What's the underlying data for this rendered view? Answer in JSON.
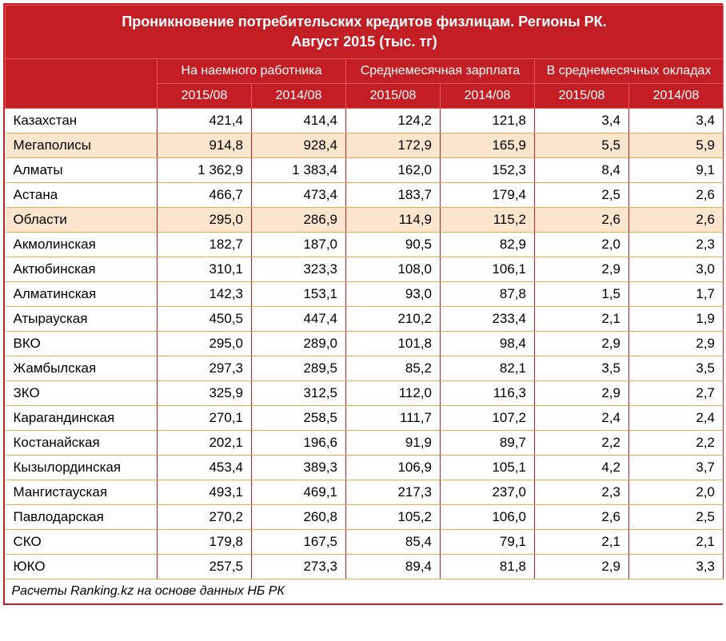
{
  "title_line1": "Проникновение потребительских кредитов физлицам. Регионы РК.",
  "title_line2": "Август 2015 (тыс. тг)",
  "group_headers": [
    "На наемного работника",
    "Среднемесячная зарплата",
    "В среднемесячных окладах"
  ],
  "year_headers": [
    "2015/08",
    "2014/08",
    "2015/08",
    "2014/08",
    "2015/08",
    "2014/08"
  ],
  "rows": [
    {
      "name": "Казахстан",
      "vals": [
        "421,4",
        "414,4",
        "124,2",
        "121,8",
        "3,4",
        "3,4"
      ],
      "highlight": false
    },
    {
      "name": "Мегаполисы",
      "vals": [
        "914,8",
        "928,4",
        "172,9",
        "165,9",
        "5,5",
        "5,9"
      ],
      "highlight": true
    },
    {
      "name": "Алматы",
      "vals": [
        "1 362,9",
        "1 383,4",
        "162,0",
        "152,3",
        "8,4",
        "9,1"
      ],
      "highlight": false
    },
    {
      "name": "Астана",
      "vals": [
        "466,7",
        "473,4",
        "183,7",
        "179,4",
        "2,5",
        "2,6"
      ],
      "highlight": false
    },
    {
      "name": "Области",
      "vals": [
        "295,0",
        "286,9",
        "114,9",
        "115,2",
        "2,6",
        "2,6"
      ],
      "highlight": true
    },
    {
      "name": "Акмолинская",
      "vals": [
        "182,7",
        "187,0",
        "90,5",
        "82,9",
        "2,0",
        "2,3"
      ],
      "highlight": false
    },
    {
      "name": "Актюбинская",
      "vals": [
        "310,1",
        "323,3",
        "108,0",
        "106,1",
        "2,9",
        "3,0"
      ],
      "highlight": false
    },
    {
      "name": "Алматинская",
      "vals": [
        "142,3",
        "153,1",
        "93,0",
        "87,8",
        "1,5",
        "1,7"
      ],
      "highlight": false
    },
    {
      "name": "Атырауская",
      "vals": [
        "450,5",
        "447,4",
        "210,2",
        "233,4",
        "2,1",
        "1,9"
      ],
      "highlight": false
    },
    {
      "name": "ВКО",
      "vals": [
        "295,0",
        "289,0",
        "101,8",
        "98,4",
        "2,9",
        "2,9"
      ],
      "highlight": false
    },
    {
      "name": "Жамбылская",
      "vals": [
        "297,3",
        "289,5",
        "85,2",
        "82,1",
        "3,5",
        "3,5"
      ],
      "highlight": false
    },
    {
      "name": "ЗКО",
      "vals": [
        "325,9",
        "312,5",
        "112,0",
        "116,3",
        "2,9",
        "2,7"
      ],
      "highlight": false
    },
    {
      "name": "Карагандинская",
      "vals": [
        "270,1",
        "258,5",
        "111,7",
        "107,2",
        "2,4",
        "2,4"
      ],
      "highlight": false
    },
    {
      "name": "Костанайская",
      "vals": [
        "202,1",
        "196,6",
        "91,9",
        "89,7",
        "2,2",
        "2,2"
      ],
      "highlight": false
    },
    {
      "name": "Кызылординская",
      "vals": [
        "453,4",
        "389,3",
        "106,9",
        "105,1",
        "4,2",
        "3,7"
      ],
      "highlight": false
    },
    {
      "name": "Мангистауская",
      "vals": [
        "493,1",
        "469,1",
        "217,3",
        "237,0",
        "2,3",
        "2,0"
      ],
      "highlight": false
    },
    {
      "name": "Павлодарская",
      "vals": [
        "270,2",
        "260,8",
        "105,2",
        "106,0",
        "2,6",
        "2,5"
      ],
      "highlight": false
    },
    {
      "name": "СКО",
      "vals": [
        "179,8",
        "167,5",
        "85,4",
        "79,1",
        "2,1",
        "2,1"
      ],
      "highlight": false
    },
    {
      "name": "ЮКО",
      "vals": [
        "257,5",
        "273,3",
        "89,4",
        "81,8",
        "2,9",
        "3,3"
      ],
      "highlight": false
    }
  ],
  "footer": "Расчеты Ranking.kz на основе данных НБ РК",
  "colors": {
    "header_bg": "#c41e25",
    "header_text": "#ffffff",
    "highlight_bg": "#fce5cd",
    "row_border": "#e8a950",
    "col_border": "#c41e25"
  }
}
